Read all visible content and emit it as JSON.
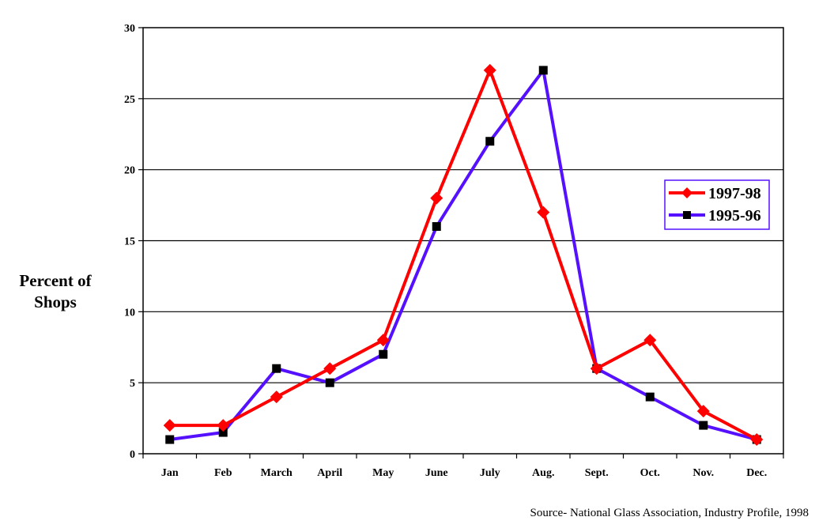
{
  "chart_data": {
    "type": "line",
    "ylabel_lines": [
      "Percent of",
      "Shops"
    ],
    "categories": [
      "Jan",
      "Feb",
      "March",
      "April",
      "May",
      "June",
      "July",
      "Aug.",
      "Sept.",
      "Oct.",
      "Nov.",
      "Dec."
    ],
    "yticks": [
      "0",
      "5",
      "10",
      "15",
      "20",
      "25",
      "30"
    ],
    "ylim": [
      0,
      30
    ],
    "grid": true,
    "legend_position": "right",
    "series": [
      {
        "name": "1997-98",
        "color": "#ff0000",
        "marker": "diamond",
        "values": [
          2,
          2,
          4,
          6,
          8,
          18,
          27,
          17,
          6,
          8,
          3,
          1
        ]
      },
      {
        "name": "1995-96",
        "color": "#5511ff",
        "marker": "square",
        "values": [
          1,
          1.5,
          6,
          5,
          7,
          16,
          22,
          27,
          6,
          4,
          2,
          1
        ]
      }
    ],
    "source": "Source- National Glass Association, Industry Profile, 1998"
  }
}
